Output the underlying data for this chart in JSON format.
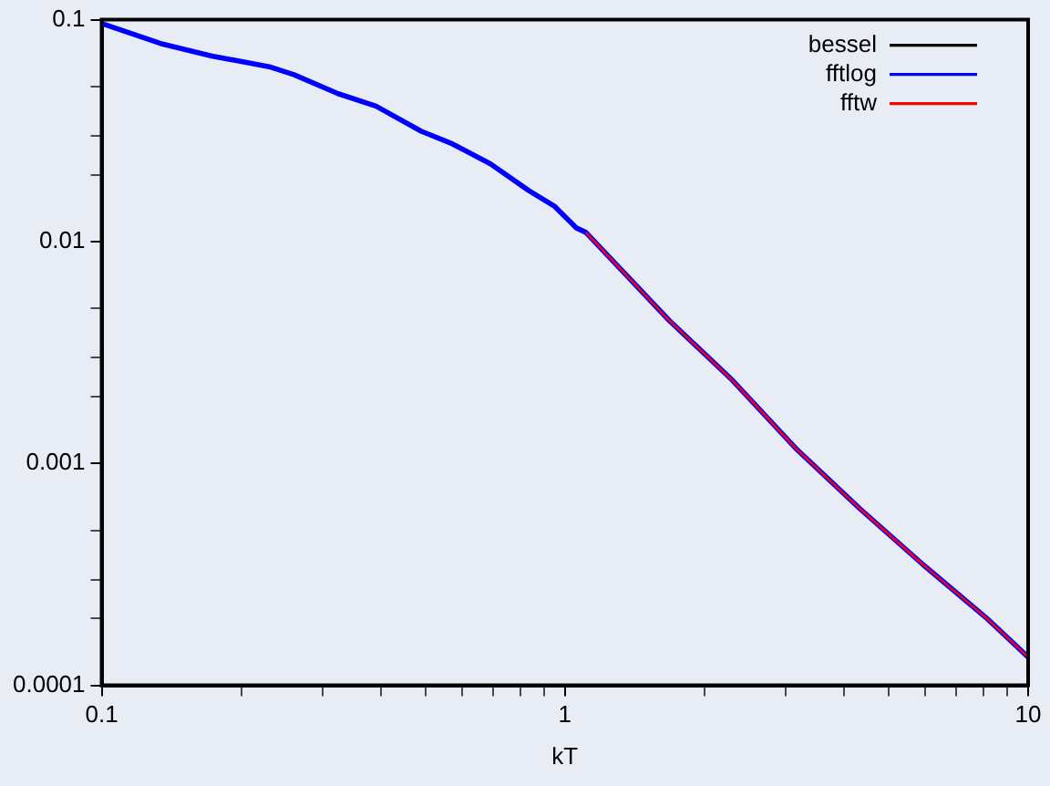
{
  "chart_data": {
    "type": "line",
    "xlabel": "kT",
    "log": "xy",
    "legend": "top right",
    "grid": false,
    "marker": "none",
    "line_style": "solid",
    "x": [
      0.1009,
      0.134,
      0.173,
      0.23,
      0.26,
      0.324,
      0.391,
      0.49,
      0.571,
      0.691,
      0.835,
      0.951,
      1.06,
      1.11,
      1.68,
      2.3,
      3.15,
      4.33,
      5.94,
      8.11,
      10
    ],
    "xlim": [
      0.1,
      10
    ],
    "ylim": [
      0.0001,
      0.1
    ],
    "xticks": [
      0.1,
      {
        "value": 0.2,
        "label": null
      },
      {
        "value": 0.3,
        "label": null
      },
      {
        "value": 0.4,
        "label": null
      },
      {
        "value": 0.5,
        "label": null
      },
      {
        "value": 0.6,
        "label": null
      },
      {
        "value": 0.7,
        "label": null
      },
      {
        "value": 0.8,
        "label": null
      },
      {
        "value": 0.9,
        "label": null
      },
      1,
      {
        "value": 2,
        "label": null
      },
      {
        "value": 3,
        "label": null
      },
      {
        "value": 4,
        "label": null
      },
      {
        "value": 5,
        "label": null
      },
      {
        "value": 6,
        "label": null
      },
      {
        "value": 7,
        "label": null
      },
      {
        "value": 8,
        "label": null
      },
      {
        "value": 9,
        "label": null
      },
      10
    ],
    "yticks": [
      0.0001,
      {
        "value": 0.0002,
        "label": null
      },
      {
        "value": 0.0003,
        "label": null
      },
      {
        "value": 0.0005,
        "label": null
      },
      0.001,
      {
        "value": 0.002,
        "label": null
      },
      {
        "value": 0.003,
        "label": null
      },
      {
        "value": 0.005,
        "label": null
      },
      0.01,
      {
        "value": 0.02,
        "label": null
      },
      {
        "value": 0.03,
        "label": null
      },
      {
        "value": 0.05,
        "label": null
      },
      0.1
    ],
    "series": [
      {
        "name": "bessel",
        "color": "#000000",
        "values": [
          null,
          null,
          null,
          null,
          null,
          null,
          null,
          null,
          null,
          null,
          null,
          null,
          null,
          null,
          null,
          null,
          null,
          null,
          null,
          null,
          null
        ]
      },
      {
        "name": "fftlog",
        "color": "#0000ff",
        "values": [
          0.0956,
          0.0781,
          0.0686,
          0.0614,
          0.0565,
          0.0464,
          0.0408,
          0.0314,
          0.0276,
          0.0224,
          0.017,
          0.0144,
          0.0115,
          0.011,
          0.00441,
          0.00237,
          0.00117,
          0.000626,
          0.000349,
          0.000202,
          0.000134
        ]
      },
      {
        "name": "fftw",
        "color": "#ff0000",
        "values": [
          null,
          null,
          null,
          null,
          null,
          null,
          null,
          null,
          null,
          null,
          null,
          null,
          null,
          0.011,
          0.00441,
          0.00237,
          0.00117,
          0.000626,
          0.000349,
          0.000202,
          0.000134
        ]
      }
    ]
  }
}
